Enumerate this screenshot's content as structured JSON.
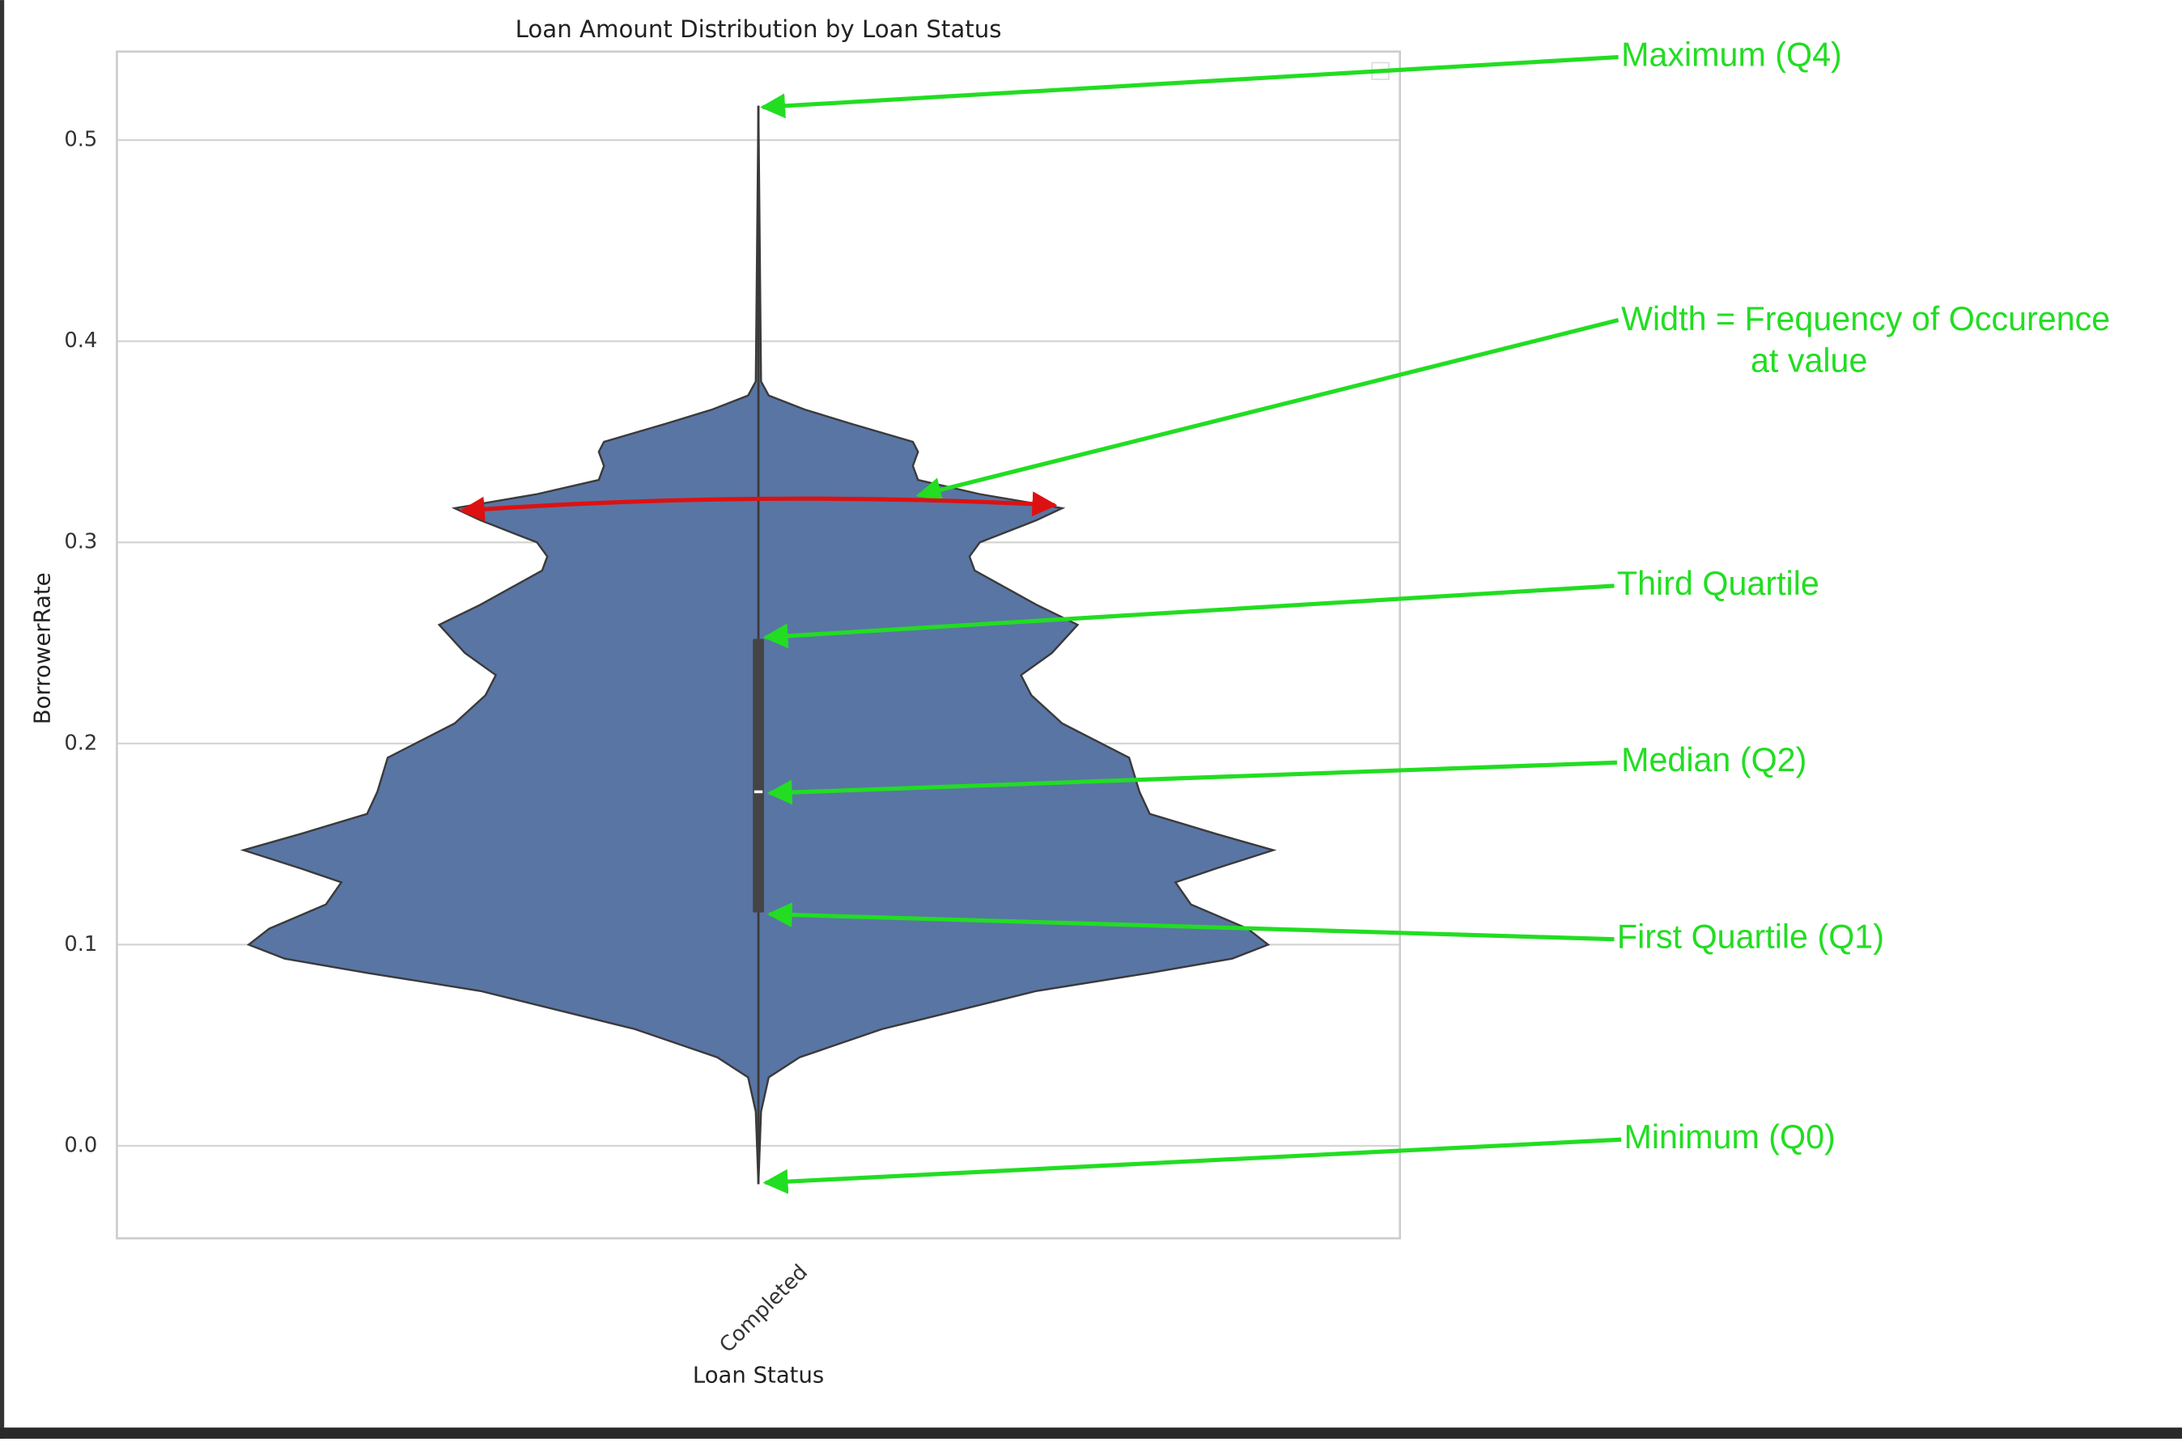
{
  "chart_data": {
    "type": "violin",
    "title": "Loan Amount Distribution by Loan Status",
    "x_label": "Loan Status",
    "y_label": "BorrowerRate",
    "categories": [
      "Completed"
    ],
    "color": "#5975a4",
    "ylim": [
      -0.046,
      0.544
    ],
    "yticks": [
      {
        "value": 0,
        "label": "0.0"
      },
      0.1,
      0.2,
      0.3,
      0.4,
      0.5
    ],
    "grid": true,
    "density_y": [
      -0.019,
      0.017,
      0.034,
      0.044,
      0.058,
      0.077,
      0.086,
      0.093,
      0.1,
      0.108,
      0.12,
      0.131,
      0.138,
      0.147,
      0.155,
      0.165,
      0.176,
      0.193,
      0.21,
      0.224,
      0.234,
      0.245,
      0.259,
      0.269,
      0.286,
      0.293,
      0.3,
      0.311,
      0.317,
      0.324,
      0.331,
      0.338,
      0.345,
      0.35,
      0.359,
      0.366,
      0.373,
      0.38,
      0.517
    ],
    "density": [
      0,
      0.005,
      0.02,
      0.08,
      0.24,
      0.54,
      0.76,
      0.92,
      0.99,
      0.95,
      0.84,
      0.81,
      0.89,
      1.0,
      0.89,
      0.76,
      0.74,
      0.72,
      0.59,
      0.53,
      0.51,
      0.57,
      0.62,
      0.54,
      0.42,
      0.41,
      0.43,
      0.54,
      0.59,
      0.43,
      0.31,
      0.3,
      0.31,
      0.3,
      0.18,
      0.09,
      0.02,
      0.005,
      0
    ],
    "min": -0.019,
    "q1": 0.116,
    "median": 0.176,
    "q3": 0.252,
    "max": 0.517,
    "annotations": [
      {
        "lines": [
          "Maximum (Q4)"
        ]
      },
      {
        "lines": [
          "Width = Frequency of Occurence",
          "at value"
        ]
      },
      {
        "lines": [
          "Third Quartile"
        ]
      },
      {
        "lines": [
          "Median (Q2)"
        ]
      },
      {
        "lines": [
          "First Quartile (Q1)"
        ]
      },
      {
        "lines": [
          "Minimum (Q0)"
        ]
      }
    ]
  }
}
